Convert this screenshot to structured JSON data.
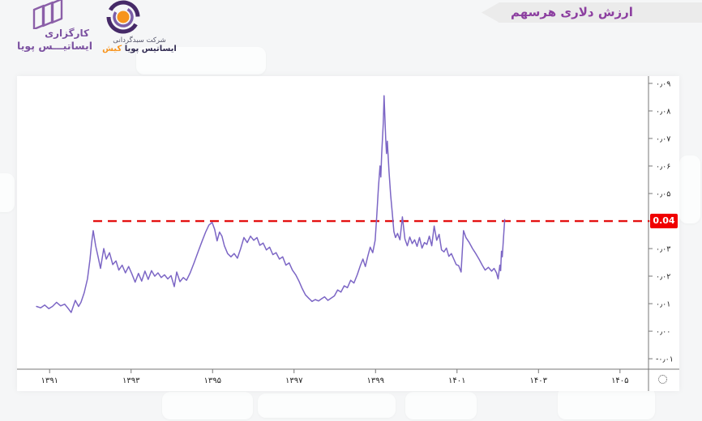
{
  "page": {
    "background_color": "#f5f6f7"
  },
  "header": {
    "title_banner": {
      "text": "ارزش دلاری هرسهم",
      "text_color": "#8c3fa0",
      "background_color": "#ebebeb"
    },
    "broker_logo": {
      "icon": "three-skewed-panes-logo",
      "line1": "کارگزاری",
      "line2": "ایساتیـــس پویا",
      "color": "#7c52a1"
    },
    "company_logo": {
      "icon": "swirl-ring-orange-dot-logo",
      "line1": "شرکت سبدگردانی",
      "line2_main": "ایساتیس پویا",
      "line2_accent": "کیش",
      "main_color": "#312b52",
      "accent_color": "#f7941d"
    }
  },
  "chart_data": {
    "type": "line",
    "title": "ارزش دلاری هرسهم",
    "grid": false,
    "legend": false,
    "corner_icon": "dotted-circle-gear",
    "colors": {
      "series_line": "#7c66c5",
      "threshold_line": "#e41212",
      "badge_bg": "#f00000",
      "badge_text": "#ffffff",
      "axis": "#777777",
      "tick_text": "#222222"
    },
    "x_axis": {
      "side": "bottom",
      "domain": [
        1390.2,
        1405.7
      ],
      "ticks": [
        {
          "label": "۱۳۹۱",
          "year": 1391
        },
        {
          "label": "۱۳۹۳",
          "year": 1393
        },
        {
          "label": "۱۳۹۵",
          "year": 1395
        },
        {
          "label": "۱۳۹۷",
          "year": 1397
        },
        {
          "label": "۱۳۹۹",
          "year": 1399
        },
        {
          "label": "۱۴۰۱",
          "year": 1401
        },
        {
          "label": "۱۴۰۳",
          "year": 1403
        },
        {
          "label": "۱۴۰۵",
          "year": 1405
        }
      ]
    },
    "y_axis": {
      "side": "right",
      "domain": [
        -0.0138,
        0.09
      ],
      "ticks": [
        {
          "label": "۰٫۰۹",
          "value": 0.09
        },
        {
          "label": "۰٫۰۸",
          "value": 0.08
        },
        {
          "label": "۰٫۰۷",
          "value": 0.07
        },
        {
          "label": "۰٫۰۶",
          "value": 0.06
        },
        {
          "label": "۰٫۰۵",
          "value": 0.05
        },
        {
          "label": "۰٫۰۴",
          "value": 0.04
        },
        {
          "label": "۰٫۰۳",
          "value": 0.03
        },
        {
          "label": "۰٫۰۲",
          "value": 0.02
        },
        {
          "label": "۰٫۰۱",
          "value": 0.01
        },
        {
          "label": "۰٫۰۰",
          "value": 0.0
        },
        {
          "label": "-۰٫۰۱",
          "value": -0.01
        }
      ]
    },
    "threshold": {
      "value": 0.04,
      "start_year": 1392.07,
      "badge_label": "0.04"
    },
    "series": [
      {
        "name": "ارزش دلاری هرسهم",
        "points": [
          [
            1390.68,
            0.009
          ],
          [
            1390.78,
            0.0085
          ],
          [
            1390.88,
            0.0095
          ],
          [
            1390.98,
            0.0082
          ],
          [
            1391.07,
            0.009
          ],
          [
            1391.17,
            0.0105
          ],
          [
            1391.27,
            0.0092
          ],
          [
            1391.37,
            0.0098
          ],
          [
            1391.47,
            0.008
          ],
          [
            1391.53,
            0.0068
          ],
          [
            1391.63,
            0.0112
          ],
          [
            1391.71,
            0.009
          ],
          [
            1391.77,
            0.0105
          ],
          [
            1391.85,
            0.014
          ],
          [
            1391.93,
            0.019
          ],
          [
            1391.99,
            0.026
          ],
          [
            1392.03,
            0.032
          ],
          [
            1392.07,
            0.0365
          ],
          [
            1392.13,
            0.031
          ],
          [
            1392.19,
            0.027
          ],
          [
            1392.25,
            0.0228
          ],
          [
            1392.33,
            0.03
          ],
          [
            1392.39,
            0.0262
          ],
          [
            1392.47,
            0.0285
          ],
          [
            1392.55,
            0.0242
          ],
          [
            1392.63,
            0.0255
          ],
          [
            1392.7,
            0.0222
          ],
          [
            1392.78,
            0.024
          ],
          [
            1392.86,
            0.0212
          ],
          [
            1392.94,
            0.0235
          ],
          [
            1393.02,
            0.0208
          ],
          [
            1393.1,
            0.0178
          ],
          [
            1393.18,
            0.021
          ],
          [
            1393.26,
            0.0182
          ],
          [
            1393.34,
            0.0218
          ],
          [
            1393.42,
            0.0188
          ],
          [
            1393.5,
            0.022
          ],
          [
            1393.58,
            0.02
          ],
          [
            1393.66,
            0.0212
          ],
          [
            1393.74,
            0.0195
          ],
          [
            1393.82,
            0.0205
          ],
          [
            1393.9,
            0.019
          ],
          [
            1393.98,
            0.0202
          ],
          [
            1394.06,
            0.0162
          ],
          [
            1394.12,
            0.0215
          ],
          [
            1394.2,
            0.018
          ],
          [
            1394.28,
            0.0195
          ],
          [
            1394.36,
            0.0185
          ],
          [
            1394.45,
            0.0212
          ],
          [
            1394.55,
            0.025
          ],
          [
            1394.65,
            0.029
          ],
          [
            1394.75,
            0.033
          ],
          [
            1394.83,
            0.036
          ],
          [
            1394.91,
            0.0385
          ],
          [
            1394.99,
            0.0395
          ],
          [
            1395.05,
            0.037
          ],
          [
            1395.11,
            0.0328
          ],
          [
            1395.17,
            0.036
          ],
          [
            1395.23,
            0.0345
          ],
          [
            1395.29,
            0.031
          ],
          [
            1395.37,
            0.0282
          ],
          [
            1395.45,
            0.027
          ],
          [
            1395.53,
            0.0282
          ],
          [
            1395.61,
            0.0265
          ],
          [
            1395.69,
            0.03
          ],
          [
            1395.77,
            0.034
          ],
          [
            1395.85,
            0.0322
          ],
          [
            1395.93,
            0.0345
          ],
          [
            1396.01,
            0.033
          ],
          [
            1396.09,
            0.034
          ],
          [
            1396.16,
            0.0312
          ],
          [
            1396.24,
            0.032
          ],
          [
            1396.32,
            0.0295
          ],
          [
            1396.4,
            0.0305
          ],
          [
            1396.48,
            0.0278
          ],
          [
            1396.56,
            0.0285
          ],
          [
            1396.64,
            0.0262
          ],
          [
            1396.72,
            0.027
          ],
          [
            1396.8,
            0.024
          ],
          [
            1396.88,
            0.0248
          ],
          [
            1396.96,
            0.0222
          ],
          [
            1397.04,
            0.0205
          ],
          [
            1397.12,
            0.0182
          ],
          [
            1397.2,
            0.0155
          ],
          [
            1397.28,
            0.0132
          ],
          [
            1397.36,
            0.012
          ],
          [
            1397.44,
            0.0108
          ],
          [
            1397.52,
            0.0115
          ],
          [
            1397.6,
            0.011
          ],
          [
            1397.68,
            0.0118
          ],
          [
            1397.75,
            0.0125
          ],
          [
            1397.83,
            0.0112
          ],
          [
            1397.91,
            0.012
          ],
          [
            1397.99,
            0.0128
          ],
          [
            1398.07,
            0.015
          ],
          [
            1398.15,
            0.0142
          ],
          [
            1398.23,
            0.0165
          ],
          [
            1398.31,
            0.0158
          ],
          [
            1398.39,
            0.0185
          ],
          [
            1398.47,
            0.0175
          ],
          [
            1398.55,
            0.0205
          ],
          [
            1398.63,
            0.024
          ],
          [
            1398.69,
            0.0262
          ],
          [
            1398.75,
            0.0235
          ],
          [
            1398.81,
            0.0272
          ],
          [
            1398.87,
            0.0305
          ],
          [
            1398.93,
            0.0285
          ],
          [
            1398.99,
            0.033
          ],
          [
            1399.03,
            0.042
          ],
          [
            1399.07,
            0.052
          ],
          [
            1399.11,
            0.06
          ],
          [
            1399.13,
            0.056
          ],
          [
            1399.15,
            0.064
          ],
          [
            1399.19,
            0.0755
          ],
          [
            1399.21,
            0.0855
          ],
          [
            1399.25,
            0.07
          ],
          [
            1399.27,
            0.0645
          ],
          [
            1399.29,
            0.069
          ],
          [
            1399.33,
            0.058
          ],
          [
            1399.37,
            0.0495
          ],
          [
            1399.41,
            0.043
          ],
          [
            1399.45,
            0.0362
          ],
          [
            1399.49,
            0.034
          ],
          [
            1399.54,
            0.0355
          ],
          [
            1399.6,
            0.0332
          ],
          [
            1399.66,
            0.0415
          ],
          [
            1399.72,
            0.0335
          ],
          [
            1399.78,
            0.031
          ],
          [
            1399.84,
            0.0342
          ],
          [
            1399.9,
            0.0318
          ],
          [
            1399.96,
            0.0332
          ],
          [
            1400.02,
            0.0308
          ],
          [
            1400.08,
            0.034
          ],
          [
            1400.14,
            0.0302
          ],
          [
            1400.2,
            0.0322
          ],
          [
            1400.26,
            0.0315
          ],
          [
            1400.32,
            0.0345
          ],
          [
            1400.38,
            0.031
          ],
          [
            1400.44,
            0.0382
          ],
          [
            1400.5,
            0.033
          ],
          [
            1400.56,
            0.0352
          ],
          [
            1400.62,
            0.0295
          ],
          [
            1400.68,
            0.0288
          ],
          [
            1400.74,
            0.0302
          ],
          [
            1400.8,
            0.0272
          ],
          [
            1400.86,
            0.0282
          ],
          [
            1400.92,
            0.0262
          ],
          [
            1400.98,
            0.0242
          ],
          [
            1401.04,
            0.0238
          ],
          [
            1401.1,
            0.0215
          ],
          [
            1401.16,
            0.0365
          ],
          [
            1401.22,
            0.034
          ],
          [
            1401.3,
            0.0322
          ],
          [
            1401.38,
            0.03
          ],
          [
            1401.46,
            0.0282
          ],
          [
            1401.54,
            0.0262
          ],
          [
            1401.62,
            0.024
          ],
          [
            1401.69,
            0.0222
          ],
          [
            1401.77,
            0.0232
          ],
          [
            1401.85,
            0.0218
          ],
          [
            1401.91,
            0.0228
          ],
          [
            1401.97,
            0.0212
          ],
          [
            1402.01,
            0.019
          ],
          [
            1402.05,
            0.024
          ],
          [
            1402.07,
            0.022
          ],
          [
            1402.09,
            0.029
          ],
          [
            1402.11,
            0.027
          ],
          [
            1402.17,
            0.0405
          ]
        ]
      }
    ]
  }
}
